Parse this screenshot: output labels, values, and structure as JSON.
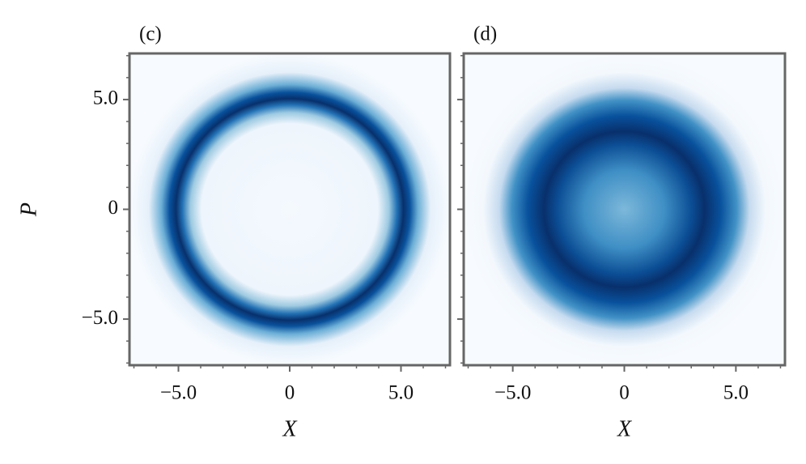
{
  "chart_data": [
    {
      "type": "heatmap",
      "panel_label": "(c)",
      "xlabel": "X",
      "ylabel": "P",
      "xlim": [
        -7.2,
        7.2
      ],
      "ylim": [
        -7.1,
        7.1
      ],
      "xticks": [
        {
          "value": -5,
          "label": "−5.0"
        },
        0,
        {
          "value": 5,
          "label": "5.0"
        }
      ],
      "yticks": [
        {
          "value": -5,
          "label": "−5.0"
        },
        0,
        {
          "value": 5,
          "label": "5.0"
        }
      ],
      "xminorticks": [
        -7,
        -6,
        -4,
        -3,
        -2,
        -1,
        1,
        2,
        3,
        4,
        6,
        7
      ],
      "yminorticks": [
        -7,
        -6,
        -4,
        -3,
        -2,
        -1,
        1,
        2,
        3,
        4,
        6,
        7
      ]
    },
    {
      "type": "heatmap",
      "panel_label": "(d)",
      "xlabel": "X",
      "xlim": [
        -7.2,
        7.2
      ],
      "ylim": [
        -7.1,
        7.1
      ],
      "xticks": [
        {
          "value": -5,
          "label": "−5.0"
        },
        0,
        {
          "value": 5,
          "label": "5.0"
        }
      ],
      "yticks": [
        -5,
        0,
        5
      ],
      "xminorticks": [
        -7,
        -6,
        -4,
        -3,
        -2,
        -1,
        1,
        2,
        3,
        4,
        6,
        7
      ],
      "yminorticks": [
        -7,
        -6,
        -4,
        -3,
        -2,
        -1,
        1,
        2,
        3,
        4,
        6,
        7
      ]
    }
  ]
}
